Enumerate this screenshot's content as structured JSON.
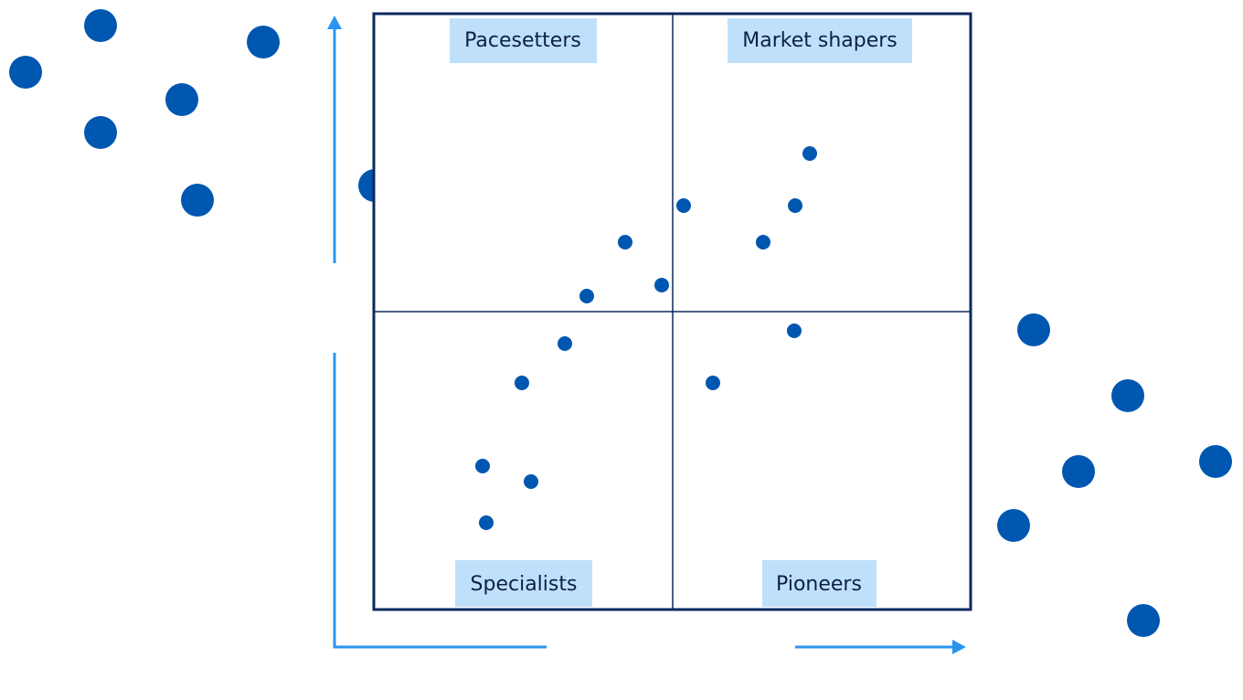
{
  "quadrants": [
    {
      "label": "Pacesetters"
    },
    {
      "label": "Market shapers"
    },
    {
      "label": "Specialists"
    },
    {
      "label": "Pioneers"
    }
  ]
}
